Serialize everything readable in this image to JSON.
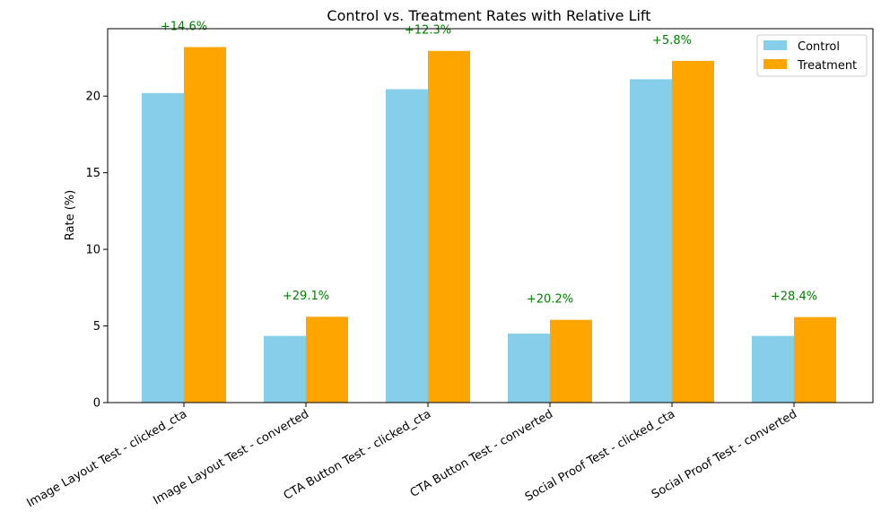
{
  "chart_data": {
    "type": "bar",
    "title": "Control vs. Treatment Rates with Relative Lift",
    "xlabel": "",
    "ylabel": "Rate (%)",
    "ylim": [
      0,
      24.4
    ],
    "yticks": [
      0,
      5,
      10,
      15,
      20
    ],
    "categories": [
      "Image Layout Test - clicked_cta",
      "Image Layout Test - converted",
      "CTA Button Test - clicked_cta",
      "CTA Button Test - converted",
      "Social Proof Test - clicked_cta",
      "Social Proof Test - converted"
    ],
    "series": [
      {
        "name": "Control",
        "color": "#87CEEB",
        "values": [
          20.2,
          4.35,
          20.45,
          4.5,
          21.1,
          4.35
        ]
      },
      {
        "name": "Treatment",
        "color": "#FFA500",
        "values": [
          23.2,
          5.6,
          22.95,
          5.4,
          22.3,
          5.58
        ]
      }
    ],
    "lift_labels": [
      "+14.6%",
      "+29.1%",
      "+12.3%",
      "+20.2%",
      "+5.8%",
      "+28.4%"
    ],
    "lift_color": "#008000",
    "legend_position": "top-right",
    "grid": false
  }
}
